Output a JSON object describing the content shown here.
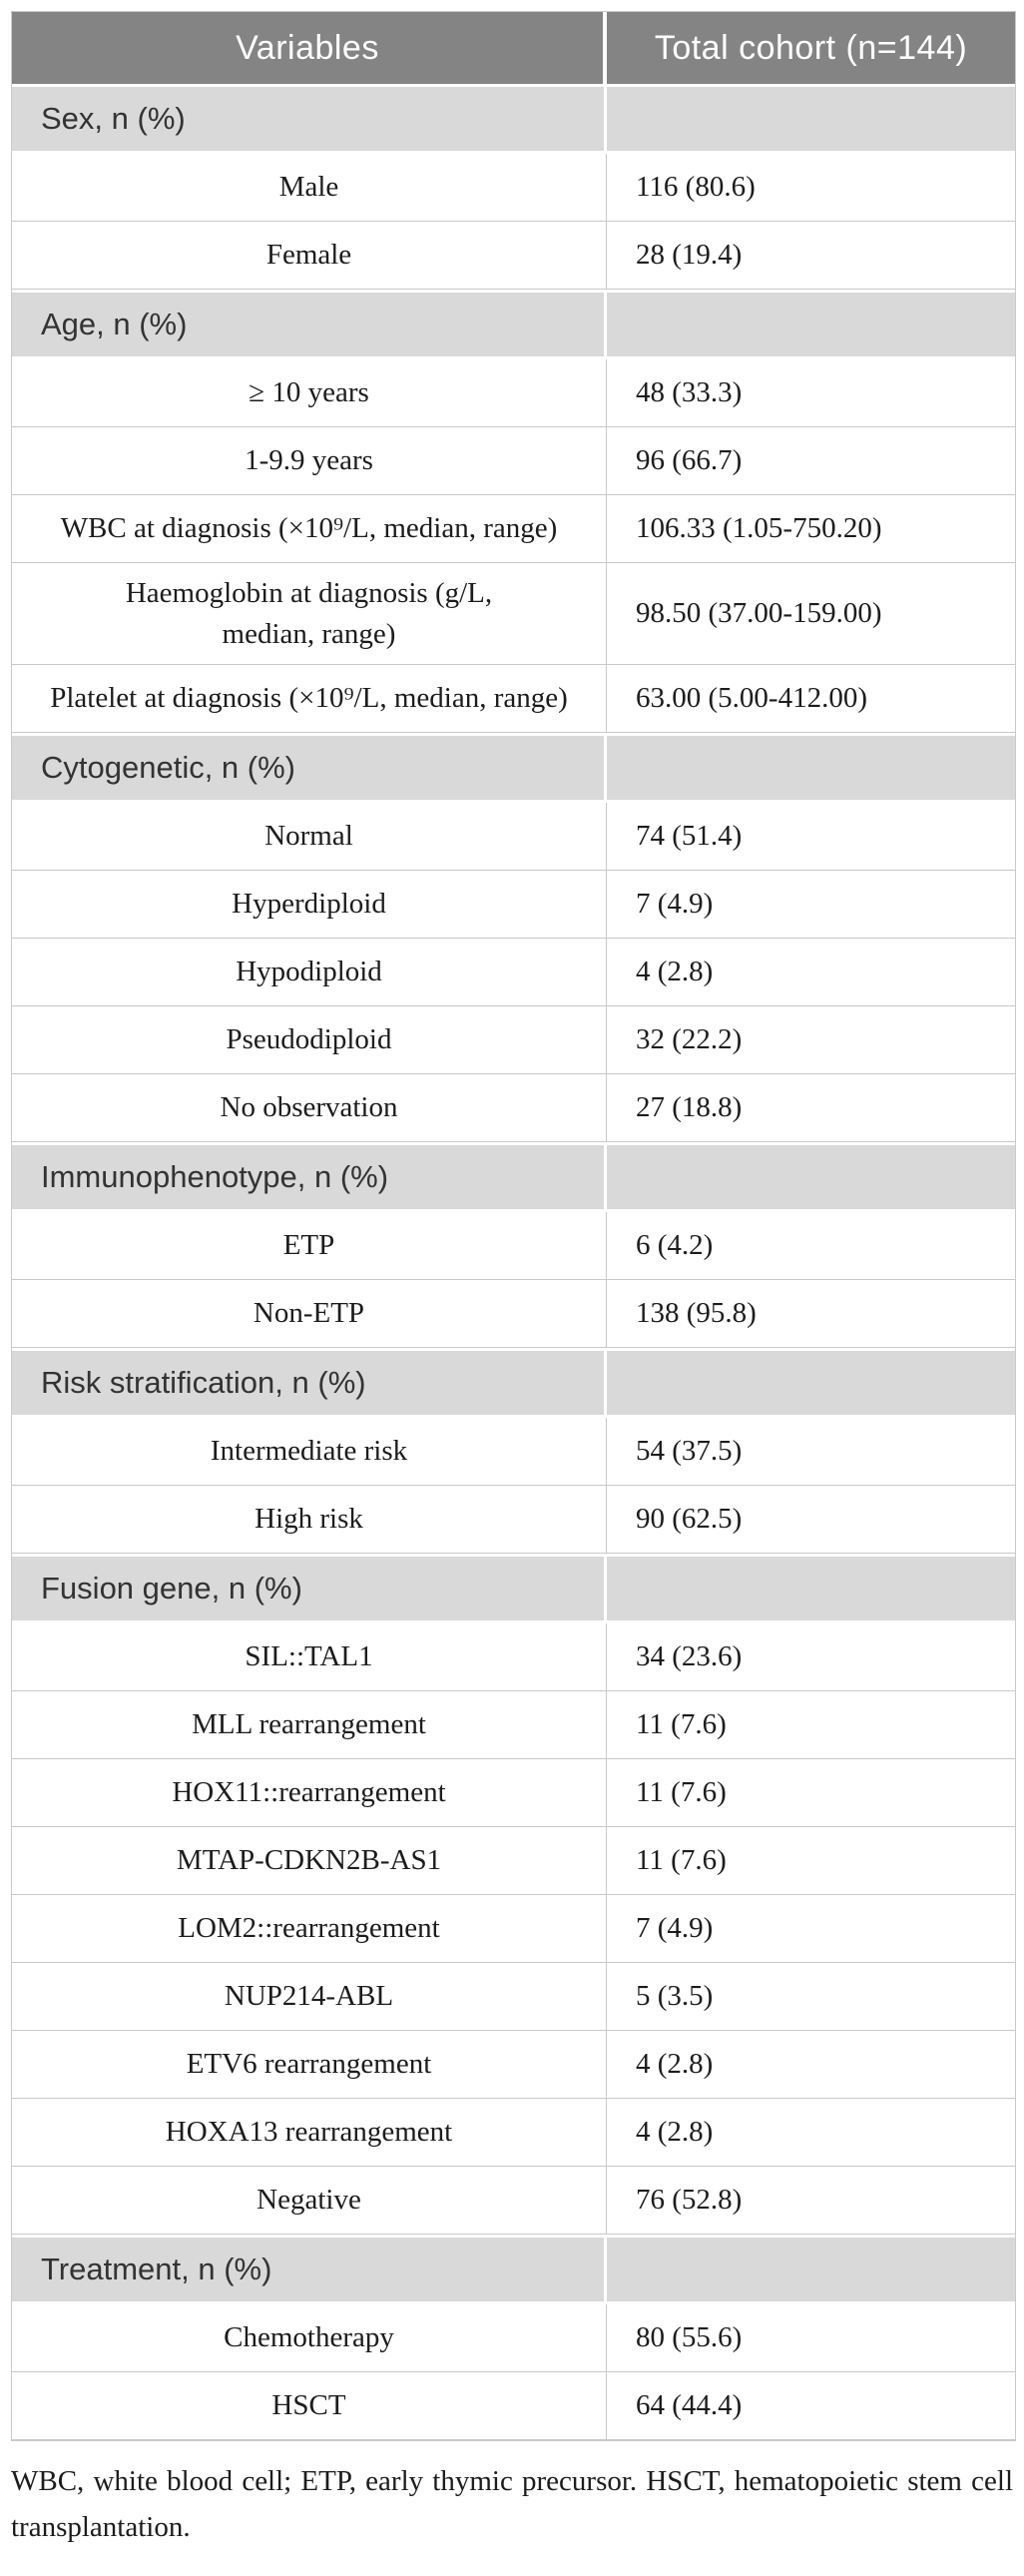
{
  "table": {
    "columns": [
      "Variables",
      "Total cohort (n=144)"
    ],
    "rows": [
      {
        "type": "section",
        "label": "Sex, n (%)"
      },
      {
        "type": "data",
        "label": "Male",
        "value": "116 (80.6)"
      },
      {
        "type": "data",
        "label": "Female",
        "value": "28 (19.4)"
      },
      {
        "type": "section",
        "label": "Age, n (%)"
      },
      {
        "type": "data",
        "label": "≥ 10 years",
        "value": "48 (33.3)"
      },
      {
        "type": "data",
        "label": "1-9.9 years",
        "value": "96 (66.7)"
      },
      {
        "type": "data",
        "label": "WBC at diagnosis (×10⁹/L, median, range)",
        "value": "106.33 (1.05-750.20)"
      },
      {
        "type": "data",
        "label": "Haemoglobin at diagnosis (g/L,\nmedian, range)",
        "value": "98.50 (37.00-159.00)"
      },
      {
        "type": "data",
        "label": "Platelet at diagnosis (×10⁹/L, median, range)",
        "value": "63.00 (5.00-412.00)"
      },
      {
        "type": "section",
        "label": "Cytogenetic, n (%)"
      },
      {
        "type": "data",
        "label": "Normal",
        "value": "74 (51.4)"
      },
      {
        "type": "data",
        "label": "Hyperdiploid",
        "value": "7 (4.9)"
      },
      {
        "type": "data",
        "label": "Hypodiploid",
        "value": "4 (2.8)"
      },
      {
        "type": "data",
        "label": "Pseudodiploid",
        "value": "32 (22.2)"
      },
      {
        "type": "data",
        "label": "No observation",
        "value": "27 (18.8)"
      },
      {
        "type": "section",
        "label": "Immunophenotype, n (%)"
      },
      {
        "type": "data",
        "label": "ETP",
        "value": "6 (4.2)"
      },
      {
        "type": "data",
        "label": "Non-ETP",
        "value": "138 (95.8)"
      },
      {
        "type": "section",
        "label": "Risk stratification, n (%)"
      },
      {
        "type": "data",
        "label": "Intermediate risk",
        "value": "54 (37.5)"
      },
      {
        "type": "data",
        "label": "High risk",
        "value": "90 (62.5)"
      },
      {
        "type": "section",
        "label": "Fusion gene, n (%)"
      },
      {
        "type": "data",
        "label": "SIL::TAL1",
        "value": "34 (23.6)"
      },
      {
        "type": "data",
        "label": "MLL rearrangement",
        "value": "11 (7.6)"
      },
      {
        "type": "data",
        "label": "HOX11::rearrangement",
        "value": "11 (7.6)"
      },
      {
        "type": "data",
        "label": "MTAP-CDKN2B-AS1",
        "value": "11 (7.6)"
      },
      {
        "type": "data",
        "label": "LOM2::rearrangement",
        "value": "7 (4.9)"
      },
      {
        "type": "data",
        "label": "NUP214-ABL",
        "value": "5 (3.5)"
      },
      {
        "type": "data",
        "label": "ETV6 rearrangement",
        "value": "4 (2.8)"
      },
      {
        "type": "data",
        "label": "HOXA13 rearrangement",
        "value": "4 (2.8)"
      },
      {
        "type": "data",
        "label": "Negative",
        "value": "76 (52.8)"
      },
      {
        "type": "section",
        "label": "Treatment, n (%)"
      },
      {
        "type": "data",
        "label": "Chemotherapy",
        "value": "80 (55.6)"
      },
      {
        "type": "data",
        "label": "HSCT",
        "value": "64 (44.4)"
      }
    ],
    "footnote": "WBC, white blood cell; ETP, early thymic precursor. HSCT, hematopoietic stem cell transplantation."
  },
  "colors": {
    "header_bg": "#848484",
    "header_text": "#ffffff",
    "section_bg": "#d9d9d9",
    "section_text": "#333333",
    "border": "#c9c9c9",
    "text": "#1c1c1c",
    "page_bg": "#ffffff"
  }
}
